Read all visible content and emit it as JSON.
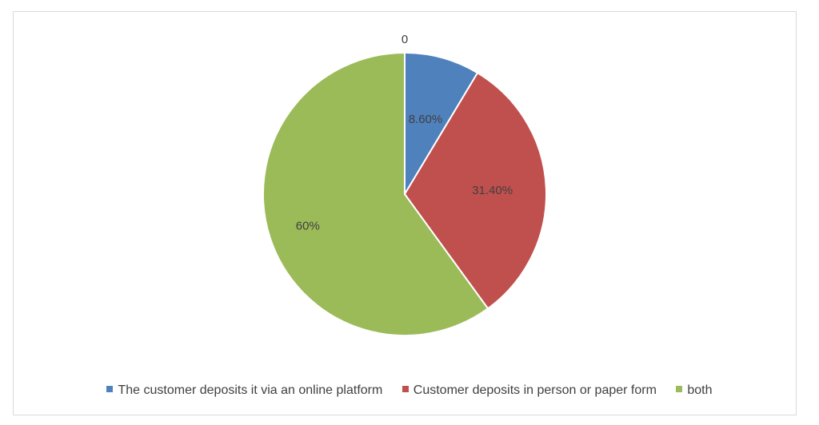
{
  "chart_data": {
    "type": "pie",
    "title": "0",
    "categories": [
      "The customer deposits it via an online platform",
      "Customer deposits in person or paper form",
      "both"
    ],
    "values": [
      8.6,
      31.4,
      60
    ],
    "data_labels": [
      "8.60%",
      "31.40%",
      "60%"
    ],
    "colors": [
      "#4f81bd",
      "#c0504d",
      "#9bbb59"
    ],
    "legend_position": "bottom"
  }
}
